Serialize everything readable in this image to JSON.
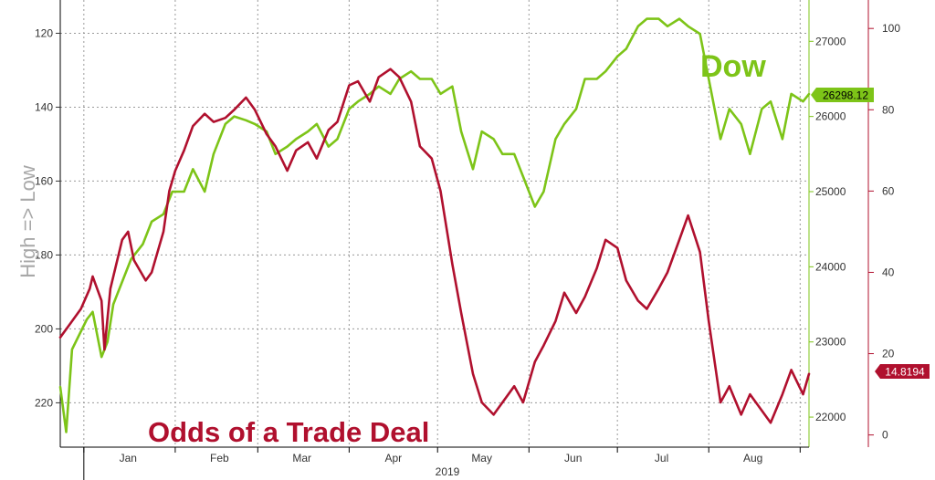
{
  "chart_data": {
    "type": "line",
    "x_axis": {
      "months": [
        "Jan",
        "Feb",
        "Mar",
        "Apr",
        "May",
        "Jun",
        "Jul",
        "Aug"
      ],
      "year": "2019",
      "start": "2018-12-24",
      "end": "2019-09-04"
    },
    "left_axis": {
      "label": "High => Low",
      "ticks": [
        120,
        140,
        160,
        180,
        200,
        220
      ],
      "range": [
        111,
        232
      ],
      "inverted": true,
      "color": "#9a9a9a"
    },
    "dow_axis": {
      "ticks": [
        22000,
        23000,
        24000,
        25000,
        26000,
        27000
      ],
      "range": [
        21600,
        27550
      ],
      "color": "#7dc418"
    },
    "odds_axis": {
      "ticks": [
        0,
        20,
        40,
        60,
        80,
        100
      ],
      "range": [
        -3,
        107
      ],
      "color": "#b0102e"
    },
    "series": [
      {
        "name": "Dow",
        "axis": "dow_axis",
        "color": "#7dc418",
        "last_value_label": "26298.12",
        "points": [
          [
            "2018-12-24",
            22400
          ],
          [
            "2018-12-26",
            21800
          ],
          [
            "2018-12-28",
            22900
          ],
          [
            "2019-01-02",
            23300
          ],
          [
            "2019-01-04",
            23400
          ],
          [
            "2019-01-07",
            22800
          ],
          [
            "2019-01-09",
            23000
          ],
          [
            "2019-01-11",
            23500
          ],
          [
            "2019-01-15",
            23900
          ],
          [
            "2019-01-17",
            24100
          ],
          [
            "2019-01-21",
            24300
          ],
          [
            "2019-01-24",
            24600
          ],
          [
            "2019-01-28",
            24700
          ],
          [
            "2019-01-31",
            25000
          ],
          [
            "2019-02-04",
            25000
          ],
          [
            "2019-02-07",
            25300
          ],
          [
            "2019-02-11",
            25000
          ],
          [
            "2019-02-14",
            25500
          ],
          [
            "2019-02-18",
            25900
          ],
          [
            "2019-02-21",
            26000
          ],
          [
            "2019-02-25",
            25950
          ],
          [
            "2019-02-28",
            25900
          ],
          [
            "2019-03-04",
            25800
          ],
          [
            "2019-03-07",
            25500
          ],
          [
            "2019-03-11",
            25600
          ],
          [
            "2019-03-14",
            25700
          ],
          [
            "2019-03-18",
            25800
          ],
          [
            "2019-03-21",
            25900
          ],
          [
            "2019-03-25",
            25600
          ],
          [
            "2019-03-28",
            25700
          ],
          [
            "2019-04-01",
            26100
          ],
          [
            "2019-04-04",
            26200
          ],
          [
            "2019-04-08",
            26300
          ],
          [
            "2019-04-11",
            26400
          ],
          [
            "2019-04-15",
            26300
          ],
          [
            "2019-04-18",
            26500
          ],
          [
            "2019-04-22",
            26600
          ],
          [
            "2019-04-25",
            26500
          ],
          [
            "2019-04-29",
            26500
          ],
          [
            "2019-05-02",
            26300
          ],
          [
            "2019-05-06",
            26400
          ],
          [
            "2019-05-09",
            25800
          ],
          [
            "2019-05-13",
            25300
          ],
          [
            "2019-05-16",
            25800
          ],
          [
            "2019-05-20",
            25700
          ],
          [
            "2019-05-23",
            25500
          ],
          [
            "2019-05-27",
            25500
          ],
          [
            "2019-05-30",
            25200
          ],
          [
            "2019-06-03",
            24800
          ],
          [
            "2019-06-06",
            25000
          ],
          [
            "2019-06-10",
            25700
          ],
          [
            "2019-06-13",
            25900
          ],
          [
            "2019-06-17",
            26100
          ],
          [
            "2019-06-20",
            26500
          ],
          [
            "2019-06-24",
            26500
          ],
          [
            "2019-06-27",
            26600
          ],
          [
            "2019-07-01",
            26800
          ],
          [
            "2019-07-04",
            26900
          ],
          [
            "2019-07-08",
            27200
          ],
          [
            "2019-07-11",
            27300
          ],
          [
            "2019-07-15",
            27300
          ],
          [
            "2019-07-18",
            27200
          ],
          [
            "2019-07-22",
            27300
          ],
          [
            "2019-07-25",
            27200
          ],
          [
            "2019-07-29",
            27100
          ],
          [
            "2019-08-01",
            26500
          ],
          [
            "2019-08-05",
            25700
          ],
          [
            "2019-08-08",
            26100
          ],
          [
            "2019-08-12",
            25900
          ],
          [
            "2019-08-15",
            25500
          ],
          [
            "2019-08-19",
            26100
          ],
          [
            "2019-08-22",
            26200
          ],
          [
            "2019-08-26",
            25700
          ],
          [
            "2019-08-29",
            26300
          ],
          [
            "2019-09-02",
            26200
          ],
          [
            "2019-09-04",
            26298
          ]
        ]
      },
      {
        "name": "Odds of a Trade Deal",
        "axis": "odds_axis",
        "color": "#b0102e",
        "last_value_label": "14.8194",
        "points": [
          [
            "2018-12-24",
            24
          ],
          [
            "2018-12-27",
            27
          ],
          [
            "2018-12-31",
            31
          ],
          [
            "2019-01-03",
            36
          ],
          [
            "2019-01-04",
            39
          ],
          [
            "2019-01-07",
            33
          ],
          [
            "2019-01-08",
            21
          ],
          [
            "2019-01-10",
            36
          ],
          [
            "2019-01-14",
            48
          ],
          [
            "2019-01-16",
            50
          ],
          [
            "2019-01-18",
            43
          ],
          [
            "2019-01-22",
            38
          ],
          [
            "2019-01-24",
            40
          ],
          [
            "2019-01-28",
            50
          ],
          [
            "2019-01-30",
            60
          ],
          [
            "2019-02-01",
            65
          ],
          [
            "2019-02-04",
            70
          ],
          [
            "2019-02-07",
            76
          ],
          [
            "2019-02-11",
            79
          ],
          [
            "2019-02-14",
            77
          ],
          [
            "2019-02-18",
            78
          ],
          [
            "2019-02-21",
            80
          ],
          [
            "2019-02-25",
            83
          ],
          [
            "2019-02-28",
            80
          ],
          [
            "2019-03-04",
            74
          ],
          [
            "2019-03-07",
            71
          ],
          [
            "2019-03-11",
            65
          ],
          [
            "2019-03-14",
            70
          ],
          [
            "2019-03-18",
            72
          ],
          [
            "2019-03-21",
            68
          ],
          [
            "2019-03-25",
            75
          ],
          [
            "2019-03-28",
            77
          ],
          [
            "2019-04-01",
            86
          ],
          [
            "2019-04-04",
            87
          ],
          [
            "2019-04-08",
            82
          ],
          [
            "2019-04-11",
            88
          ],
          [
            "2019-04-15",
            90
          ],
          [
            "2019-04-18",
            88
          ],
          [
            "2019-04-22",
            82
          ],
          [
            "2019-04-25",
            71
          ],
          [
            "2019-04-29",
            68
          ],
          [
            "2019-05-02",
            60
          ],
          [
            "2019-05-06",
            42
          ],
          [
            "2019-05-09",
            30
          ],
          [
            "2019-05-13",
            15
          ],
          [
            "2019-05-16",
            8
          ],
          [
            "2019-05-20",
            5
          ],
          [
            "2019-05-23",
            8
          ],
          [
            "2019-05-27",
            12
          ],
          [
            "2019-05-30",
            8
          ],
          [
            "2019-06-03",
            18
          ],
          [
            "2019-06-06",
            22
          ],
          [
            "2019-06-10",
            28
          ],
          [
            "2019-06-13",
            35
          ],
          [
            "2019-06-17",
            30
          ],
          [
            "2019-06-20",
            34
          ],
          [
            "2019-06-24",
            41
          ],
          [
            "2019-06-27",
            48
          ],
          [
            "2019-07-01",
            46
          ],
          [
            "2019-07-04",
            38
          ],
          [
            "2019-07-08",
            33
          ],
          [
            "2019-07-11",
            31
          ],
          [
            "2019-07-15",
            36
          ],
          [
            "2019-07-18",
            40
          ],
          [
            "2019-07-22",
            48
          ],
          [
            "2019-07-25",
            54
          ],
          [
            "2019-07-29",
            45
          ],
          [
            "2019-08-01",
            28
          ],
          [
            "2019-08-05",
            8
          ],
          [
            "2019-08-08",
            12
          ],
          [
            "2019-08-12",
            5
          ],
          [
            "2019-08-15",
            10
          ],
          [
            "2019-08-19",
            6
          ],
          [
            "2019-08-22",
            3
          ],
          [
            "2019-08-26",
            10
          ],
          [
            "2019-08-29",
            16
          ],
          [
            "2019-09-02",
            10
          ],
          [
            "2019-09-04",
            15
          ]
        ]
      }
    ],
    "annotations": [
      {
        "text": "Dow",
        "color": "#7dc418",
        "position": "top-right"
      },
      {
        "text": "Odds of a Trade Deal",
        "color": "#b0102e",
        "position": "bottom-left"
      }
    ],
    "grid": true
  }
}
